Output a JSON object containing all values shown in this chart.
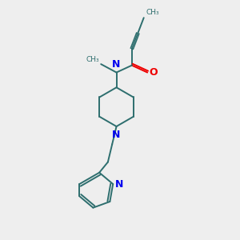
{
  "bg_color": "#eeeeee",
  "bond_color": "#2d6e6e",
  "N_color": "#0000ee",
  "O_color": "#ee0000",
  "lw": 1.4,
  "font_size": 9,
  "fig_size": [
    3.0,
    3.0
  ],
  "dpi": 100,
  "xlim": [
    0,
    10
  ],
  "ylim": [
    0,
    10
  ]
}
